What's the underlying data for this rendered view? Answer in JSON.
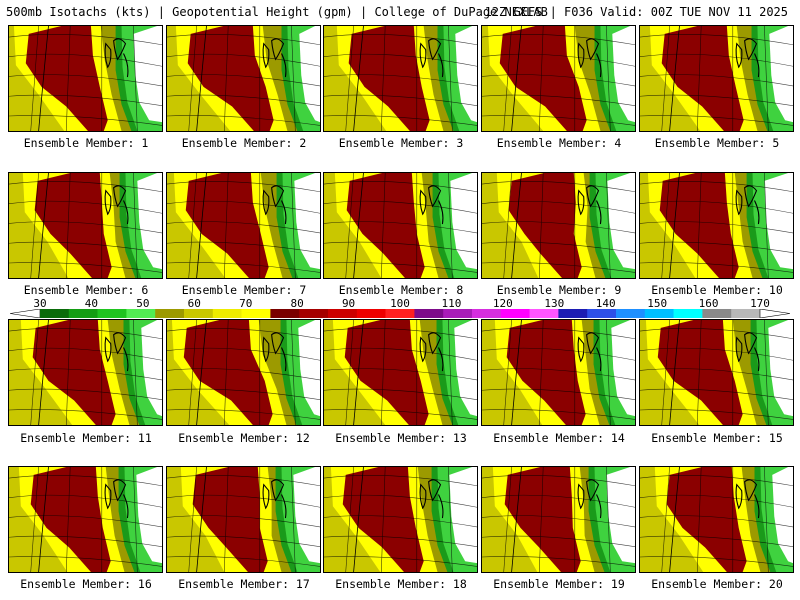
{
  "header": {
    "left": "500mb Isotachs (kts) | Geopotential Height (gpm) | College of DuPage NEXLAB",
    "right": "12Z GEFS | F036 Valid: 00Z TUE NOV 11 2025"
  },
  "panels": [
    {
      "label": "Ensemble Member: 1"
    },
    {
      "label": "Ensemble Member: 2"
    },
    {
      "label": "Ensemble Member: 3"
    },
    {
      "label": "Ensemble Member: 4"
    },
    {
      "label": "Ensemble Member: 5"
    },
    {
      "label": "Ensemble Member: 6"
    },
    {
      "label": "Ensemble Member: 7"
    },
    {
      "label": "Ensemble Member: 8"
    },
    {
      "label": "Ensemble Member: 9"
    },
    {
      "label": "Ensemble Member: 10"
    },
    {
      "label": "Ensemble Member: 11"
    },
    {
      "label": "Ensemble Member: 12"
    },
    {
      "label": "Ensemble Member: 13"
    },
    {
      "label": "Ensemble Member: 14"
    },
    {
      "label": "Ensemble Member: 15"
    },
    {
      "label": "Ensemble Member: 16"
    },
    {
      "label": "Ensemble Member: 17"
    },
    {
      "label": "Ensemble Member: 18"
    },
    {
      "label": "Ensemble Member: 19"
    },
    {
      "label": "Ensemble Member: 20"
    }
  ],
  "colorbar": {
    "labels": [
      "30",
      "40",
      "50",
      "60",
      "70",
      "80",
      "90",
      "100",
      "110",
      "120",
      "130",
      "140",
      "150",
      "160",
      "170"
    ],
    "colors": [
      "#0a6b0a",
      "#139d13",
      "#1fc41f",
      "#52ec52",
      "#9c9a00",
      "#c9c700",
      "#eeec00",
      "#ffff00",
      "#7a0000",
      "#a50000",
      "#cc0000",
      "#ee0000",
      "#ff2020",
      "#7d0b8a",
      "#a91cb8",
      "#d62edf",
      "#ff00ff",
      "#ff55ff",
      "#1c1cb3",
      "#2d4fe8",
      "#1e90ff",
      "#00bfff",
      "#00ffff",
      "#8a8a8a",
      "#b8b8b8"
    ]
  },
  "map_colors": {
    "ring_outer": "#9c9a00",
    "ring_mid": "#c9c700",
    "ring_inner": "#ffff00",
    "jet_core": "#8b0000",
    "green_dark": "#1a9a1a",
    "green_light": "#3fd23f",
    "land": "#ffffff",
    "lines": "#000000"
  }
}
